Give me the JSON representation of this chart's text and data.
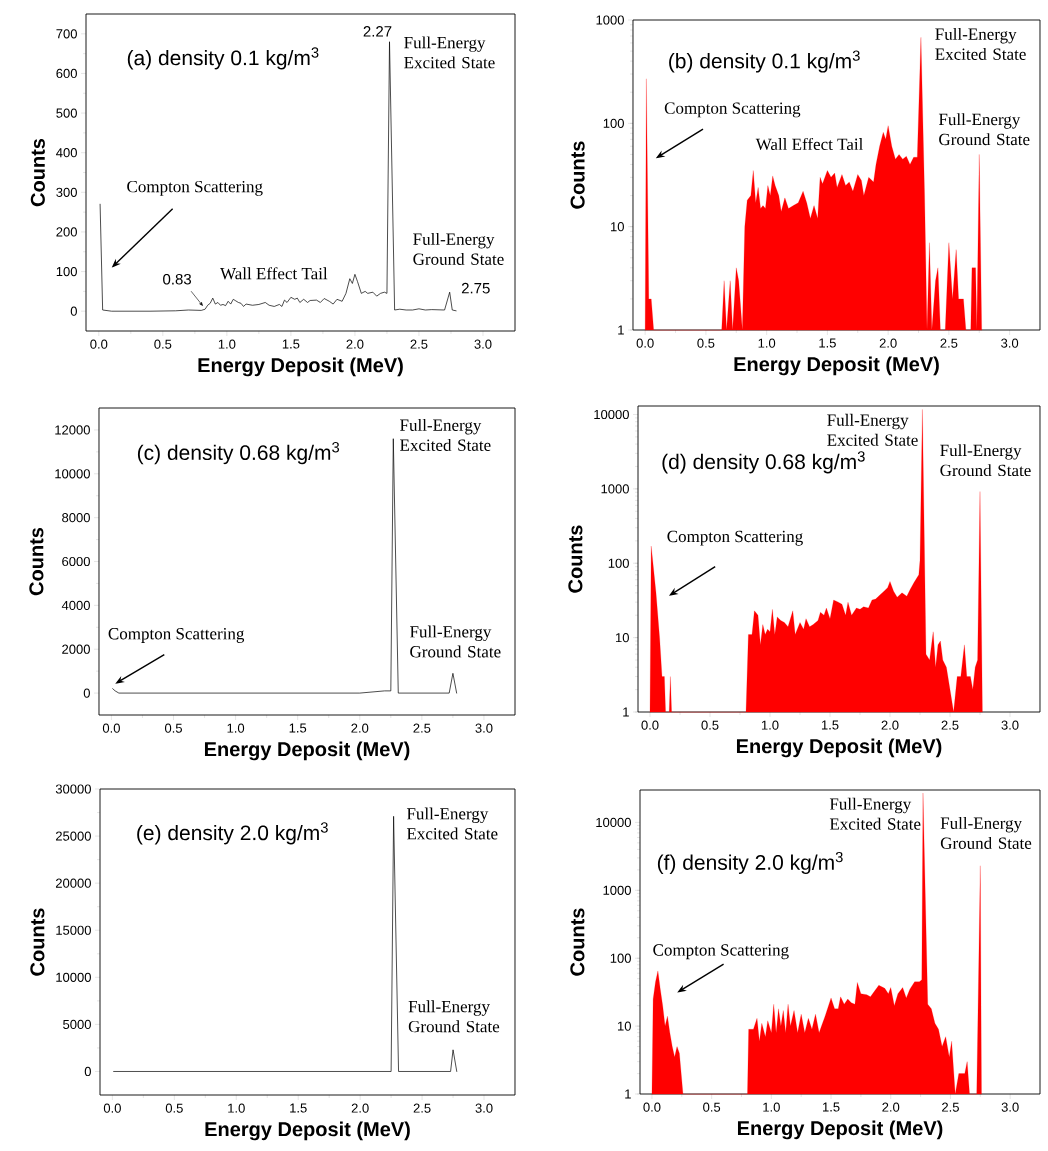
{
  "chart_data": [
    {
      "type": "line",
      "title": "(a) density 0.1 kg/m$^{3}$",
      "xlabel": "Energy Deposit (MeV)",
      "ylabel": "Counts",
      "color": "#000000",
      "x": [
        0.01,
        0.03,
        0.1,
        0.4,
        0.6,
        0.7,
        0.8,
        0.83,
        0.85,
        0.87,
        0.89,
        0.91,
        0.93,
        0.95,
        0.97,
        0.99,
        1.01,
        1.03,
        1.05,
        1.07,
        1.09,
        1.11,
        1.13,
        1.15,
        1.2,
        1.25,
        1.3,
        1.33,
        1.37,
        1.41,
        1.43,
        1.45,
        1.47,
        1.5,
        1.53,
        1.55,
        1.57,
        1.6,
        1.63,
        1.65,
        1.7,
        1.73,
        1.76,
        1.8,
        1.83,
        1.86,
        1.9,
        1.93,
        1.96,
        1.98,
        2.0,
        2.02,
        2.05,
        2.08,
        2.1,
        2.14,
        2.17,
        2.2,
        2.23,
        2.25,
        2.27,
        2.31,
        2.35,
        2.4,
        2.45,
        2.5,
        2.55,
        2.6,
        2.7,
        2.74,
        2.76,
        2.79
      ],
      "values": [
        270,
        3,
        0,
        0,
        1,
        3,
        2,
        5,
        15,
        20,
        33,
        18,
        22,
        15,
        17,
        14,
        25,
        18,
        30,
        26,
        22,
        20,
        12,
        18,
        15,
        17,
        22,
        15,
        12,
        17,
        12,
        28,
        22,
        35,
        30,
        33,
        22,
        30,
        22,
        27,
        28,
        22,
        32,
        25,
        18,
        30,
        25,
        45,
        82,
        70,
        93,
        75,
        45,
        50,
        45,
        48,
        38,
        45,
        48,
        45,
        680,
        3,
        5,
        3,
        3,
        6,
        3,
        4,
        3,
        48,
        3,
        1
      ],
      "xlim": [
        -0.1,
        3.25
      ],
      "ylim": [
        -50,
        750
      ],
      "xticks": [
        {
          "value": 0,
          "label": "0.0"
        },
        {
          "value": 0.5,
          "label": "0.5"
        },
        {
          "value": 1,
          "label": "1.0"
        },
        {
          "value": 1.5,
          "label": "1.5"
        },
        {
          "value": 2,
          "label": "2.0"
        },
        {
          "value": 2.5,
          "label": "2.5"
        },
        {
          "value": 3,
          "label": "3.0"
        }
      ],
      "yticks": [
        0,
        100,
        200,
        300,
        400,
        500,
        600,
        700
      ],
      "annotations": [
        "Compton Scattering",
        "Wall Effect Tail",
        "Full-Energy Excited State",
        "Full-Energy Ground State",
        {
          "text": "0.83",
          "x": 0.83,
          "y": 5
        },
        {
          "text": "2.27",
          "x": 2.27,
          "y": 680
        },
        {
          "text": "2.75",
          "x": 2.75,
          "y": 48
        }
      ]
    },
    {
      "type": "area",
      "title": "(b) density 0.1 kg/m$^{3}$",
      "xlabel": "Energy Deposit (MeV)",
      "ylabel": "Counts",
      "color": "#ff0000",
      "log": "y",
      "x": [
        0.0,
        0.01,
        0.03,
        0.05,
        0.07,
        0.63,
        0.65,
        0.67,
        0.7,
        0.72,
        0.75,
        0.77,
        0.8,
        0.82,
        0.84,
        0.87,
        0.89,
        0.91,
        0.93,
        0.95,
        0.97,
        0.99,
        1.01,
        1.03,
        1.05,
        1.07,
        1.1,
        1.12,
        1.15,
        1.18,
        1.22,
        1.26,
        1.3,
        1.33,
        1.36,
        1.39,
        1.42,
        1.44,
        1.46,
        1.5,
        1.53,
        1.56,
        1.58,
        1.62,
        1.65,
        1.68,
        1.71,
        1.75,
        1.78,
        1.8,
        1.84,
        1.88,
        1.9,
        1.93,
        1.96,
        1.98,
        2.0,
        2.03,
        2.06,
        2.09,
        2.12,
        2.15,
        2.18,
        2.21,
        2.24,
        2.27,
        2.3,
        2.32,
        2.34,
        2.36,
        2.39,
        2.41,
        2.43,
        2.47,
        2.5,
        2.53,
        2.56,
        2.58,
        2.62,
        2.64,
        2.68,
        2.69,
        2.72,
        2.73,
        2.75,
        2.77
      ],
      "values": [
        1,
        270,
        2,
        2,
        1,
        1,
        3,
        1,
        3,
        1,
        4,
        3,
        1,
        10,
        18,
        20,
        35,
        17,
        24,
        15,
        16,
        15,
        25,
        20,
        31,
        25,
        20,
        14,
        19,
        15,
        16,
        17,
        22,
        17,
        12,
        16,
        12,
        30,
        26,
        35,
        30,
        33,
        24,
        32,
        25,
        27,
        22,
        32,
        28,
        20,
        30,
        27,
        40,
        60,
        82,
        70,
        95,
        60,
        45,
        50,
        45,
        48,
        40,
        47,
        47,
        680,
        20,
        1,
        7,
        1,
        3,
        4,
        1,
        1,
        7,
        2,
        6,
        2,
        2,
        1,
        1,
        4,
        4,
        1,
        50,
        1
      ],
      "xlim": [
        -0.1,
        3.25
      ],
      "ylim": [
        1,
        1000
      ],
      "xticks": [
        {
          "value": 0,
          "label": "0.0"
        },
        {
          "value": 0.5,
          "label": "0.5"
        },
        {
          "value": 1,
          "label": "1.0"
        },
        {
          "value": 1.5,
          "label": "1.5"
        },
        {
          "value": 2,
          "label": "2.0"
        },
        {
          "value": 2.5,
          "label": "2.5"
        },
        {
          "value": 3,
          "label": "3.0"
        }
      ],
      "yticks": [
        1,
        10,
        100,
        1000
      ],
      "annotations": [
        "Compton Scattering",
        "Wall Effect Tail",
        "Full-Energy Excited State",
        "Full-Energy Ground State"
      ]
    },
    {
      "type": "line",
      "title": "(c) density 0.68 kg/m$^{3}$",
      "xlabel": "Energy Deposit (MeV)",
      "ylabel": "Counts",
      "color": "#000000",
      "x": [
        0.01,
        0.03,
        0.06,
        0.1,
        0.5,
        1.0,
        1.5,
        1.8,
        2.0,
        2.2,
        2.25,
        2.27,
        2.31,
        2.5,
        2.72,
        2.75,
        2.78
      ],
      "values": [
        200,
        100,
        0,
        0,
        0,
        0,
        0,
        0,
        0,
        100,
        100,
        11600,
        0,
        0,
        0,
        900,
        0
      ],
      "xlim": [
        -0.1,
        3.25
      ],
      "ylim": [
        -1000,
        13000
      ],
      "xticks": [
        {
          "value": 0,
          "label": "0.0"
        },
        {
          "value": 0.5,
          "label": "0.5"
        },
        {
          "value": 1,
          "label": "1.0"
        },
        {
          "value": 1.5,
          "label": "1.5"
        },
        {
          "value": 2,
          "label": "2.0"
        },
        {
          "value": 2.5,
          "label": "2.5"
        },
        {
          "value": 3,
          "label": "3.0"
        }
      ],
      "yticks": [
        0,
        2000,
        4000,
        6000,
        8000,
        10000,
        12000
      ],
      "annotations": [
        "Compton Scattering",
        "Full-Energy Excited State",
        "Full-Energy Ground State"
      ]
    },
    {
      "type": "area",
      "title": "(d) density 0.68 kg/m$^{3}$",
      "xlabel": "Energy Deposit (MeV)",
      "ylabel": "Counts",
      "color": "#ff0000",
      "log": "y",
      "x": [
        0.0,
        0.01,
        0.05,
        0.08,
        0.1,
        0.12,
        0.13,
        0.16,
        0.17,
        0.18,
        0.8,
        0.82,
        0.85,
        0.87,
        0.9,
        0.92,
        0.94,
        0.96,
        0.98,
        1.0,
        1.02,
        1.04,
        1.06,
        1.09,
        1.12,
        1.15,
        1.19,
        1.21,
        1.25,
        1.28,
        1.3,
        1.33,
        1.36,
        1.4,
        1.42,
        1.45,
        1.47,
        1.5,
        1.53,
        1.57,
        1.6,
        1.63,
        1.65,
        1.68,
        1.72,
        1.75,
        1.78,
        1.82,
        1.85,
        1.88,
        1.92,
        1.95,
        1.98,
        2.0,
        2.03,
        2.06,
        2.1,
        2.14,
        2.17,
        2.2,
        2.24,
        2.25,
        2.27,
        2.3,
        2.33,
        2.36,
        2.38,
        2.4,
        2.42,
        2.44,
        2.47,
        2.5,
        2.53,
        2.56,
        2.59,
        2.62,
        2.64,
        2.67,
        2.69,
        2.71,
        2.73,
        2.75,
        2.77
      ],
      "values": [
        1,
        170,
        40,
        10,
        3,
        3,
        1,
        1,
        3,
        1,
        1,
        11,
        11,
        23,
        20,
        8,
        15,
        11,
        13,
        12,
        24,
        11,
        19,
        17,
        16,
        14,
        23,
        11,
        16,
        13,
        18,
        14,
        15,
        17,
        22,
        20,
        25,
        18,
        32,
        30,
        28,
        20,
        30,
        20,
        25,
        24,
        26,
        25,
        32,
        33,
        38,
        42,
        47,
        57,
        42,
        35,
        40,
        36,
        45,
        55,
        70,
        110,
        11700,
        6,
        5,
        12,
        4,
        8,
        9,
        5,
        4,
        2,
        1,
        3,
        3,
        8,
        3,
        3,
        2,
        4,
        5,
        920,
        1
      ],
      "xlim": [
        -0.1,
        3.25
      ],
      "ylim": [
        1,
        13000
      ],
      "xticks": [
        {
          "value": 0,
          "label": "0.0"
        },
        {
          "value": 0.5,
          "label": "0.5"
        },
        {
          "value": 1,
          "label": "1.0"
        },
        {
          "value": 1.5,
          "label": "1.5"
        },
        {
          "value": 2,
          "label": "2.0"
        },
        {
          "value": 2.5,
          "label": "2.5"
        },
        {
          "value": 3,
          "label": "3.0"
        }
      ],
      "yticks": [
        1,
        10,
        100,
        1000,
        10000
      ],
      "annotations": [
        "Compton Scattering",
        "Full-Energy Excited State",
        "Full-Energy Ground State"
      ]
    },
    {
      "type": "line",
      "title": "(e) density 2.0 kg/m$^{3}$",
      "xlabel": "Energy Deposit (MeV)",
      "ylabel": "Counts",
      "color": "#000000",
      "x": [
        0.01,
        0.05,
        0.1,
        0.5,
        1.0,
        1.5,
        2.0,
        2.25,
        2.27,
        2.31,
        2.5,
        2.73,
        2.75,
        2.78
      ],
      "values": [
        0,
        0,
        0,
        0,
        0,
        0,
        0,
        0,
        27100,
        0,
        0,
        0,
        2300,
        0
      ],
      "xlim": [
        -0.1,
        3.25
      ],
      "ylim": [
        -2500,
        30000
      ],
      "xticks": [
        {
          "value": 0,
          "label": "0.0"
        },
        {
          "value": 0.5,
          "label": "0.5"
        },
        {
          "value": 1,
          "label": "1.0"
        },
        {
          "value": 1.5,
          "label": "1.5"
        },
        {
          "value": 2,
          "label": "2.0"
        },
        {
          "value": 2.5,
          "label": "2.5"
        },
        {
          "value": 3,
          "label": "3.0"
        }
      ],
      "yticks": [
        0,
        5000,
        10000,
        15000,
        20000,
        25000,
        30000
      ],
      "annotations": [
        "Full-Energy Excited State",
        "Full-Energy Ground State"
      ]
    },
    {
      "type": "area",
      "title": "(f) density 2.0 kg/m$^{3}$",
      "xlabel": "Energy Deposit (MeV)",
      "ylabel": "Counts",
      "color": "#ff0000",
      "log": "y",
      "x": [
        0.0,
        0.01,
        0.03,
        0.05,
        0.07,
        0.09,
        0.11,
        0.13,
        0.15,
        0.17,
        0.19,
        0.21,
        0.23,
        0.26,
        0.8,
        0.81,
        0.85,
        0.88,
        0.9,
        0.92,
        0.95,
        0.97,
        1.0,
        1.02,
        1.04,
        1.06,
        1.08,
        1.1,
        1.12,
        1.14,
        1.16,
        1.19,
        1.22,
        1.25,
        1.28,
        1.31,
        1.34,
        1.37,
        1.4,
        1.42,
        1.45,
        1.5,
        1.53,
        1.56,
        1.58,
        1.61,
        1.64,
        1.67,
        1.7,
        1.72,
        1.75,
        1.8,
        1.83,
        1.86,
        1.9,
        1.95,
        1.98,
        2.0,
        2.03,
        2.06,
        2.1,
        2.13,
        2.16,
        2.2,
        2.24,
        2.26,
        2.27,
        2.31,
        2.34,
        2.37,
        2.4,
        2.43,
        2.46,
        2.49,
        2.51,
        2.54,
        2.57,
        2.62,
        2.64,
        2.66,
        2.72,
        2.75,
        2.76
      ],
      "values": [
        1,
        25,
        45,
        65,
        35,
        20,
        10,
        14,
        8,
        5,
        3.5,
        5,
        4,
        1,
        1,
        9,
        9,
        13,
        6,
        11,
        7,
        12,
        8,
        21,
        8,
        18,
        10,
        17,
        8,
        21,
        10,
        17,
        8,
        15,
        8,
        13,
        9,
        15,
        8,
        10,
        14,
        26,
        18,
        18,
        27,
        21,
        25,
        22,
        21,
        44,
        30,
        29,
        27,
        32,
        40,
        36,
        30,
        37,
        20,
        30,
        37,
        26,
        35,
        45,
        45,
        48,
        27100,
        21,
        18,
        11,
        9,
        5,
        7,
        3.5,
        6,
        1,
        2,
        2,
        3,
        1,
        1,
        2300,
        1
      ],
      "xlim": [
        -0.1,
        3.25
      ],
      "ylim": [
        1,
        30000
      ],
      "xticks": [
        {
          "value": 0,
          "label": "0.0"
        },
        {
          "value": 0.5,
          "label": "0.5"
        },
        {
          "value": 1,
          "label": "1.0"
        },
        {
          "value": 1.5,
          "label": "1.5"
        },
        {
          "value": 2,
          "label": "2.0"
        },
        {
          "value": 2.5,
          "label": "2.5"
        },
        {
          "value": 3,
          "label": "3.0"
        }
      ],
      "yticks": [
        1,
        10,
        100,
        1000,
        10000
      ],
      "annotations": [
        "Compton Scattering",
        "Full-Energy Excited State",
        "Full-Energy Ground State"
      ]
    }
  ]
}
